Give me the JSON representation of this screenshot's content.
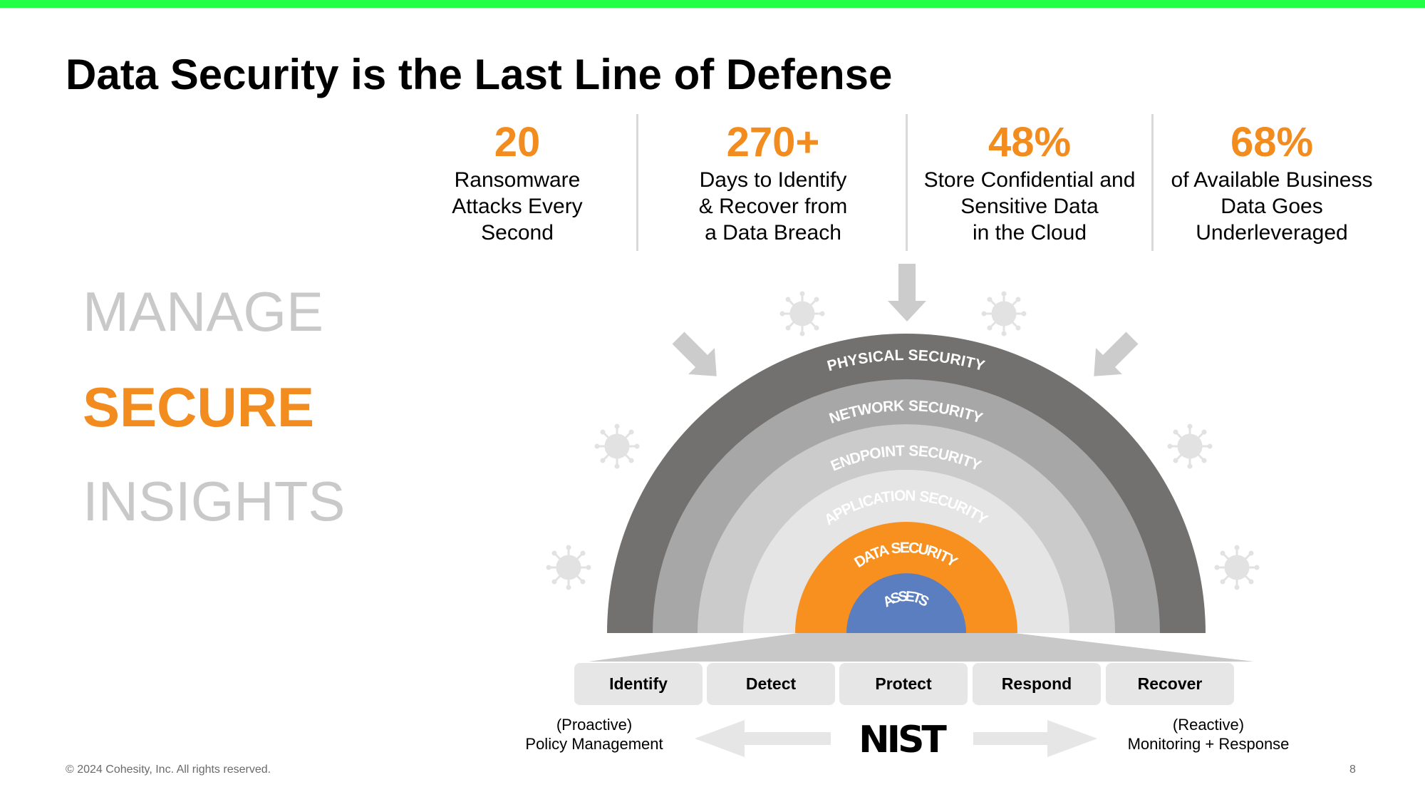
{
  "colors": {
    "accent": "#f28c1e",
    "top_bar": "#22ff44",
    "physical": "#737170",
    "network": "#a8a7a7",
    "endpoint": "#cbcbcb",
    "application": "#e5e5e5",
    "data": "#f7901e",
    "assets": "#5a7ec0",
    "muted": "#c9c9c9"
  },
  "title": "Data Security is the Last Line of Defense",
  "stats": [
    {
      "number": "20",
      "description": "Ransomware\nAttacks Every\nSecond"
    },
    {
      "number": "270+",
      "description": "Days to Identify\n& Recover from\na Data Breach"
    },
    {
      "number": "48%",
      "description": "Store Confidential and\nSensitive Data\nin the Cloud"
    },
    {
      "number": "68%",
      "description": "of Available Business\nData Goes\nUnderleveraged"
    }
  ],
  "pillars": {
    "manage": "MANAGE",
    "secure": "SECURE",
    "insights": "INSIGHTS"
  },
  "layers": {
    "physical": "PHYSICAL SECURITY",
    "network": "NETWORK SECURITY",
    "endpoint": "ENDPOINT SECURITY",
    "application": "APPLICATION SECURITY",
    "data": "DATA SECURITY",
    "assets": "ASSETS"
  },
  "nist_steps": [
    "Identify",
    "Detect",
    "Protect",
    "Respond",
    "Recover"
  ],
  "phases": {
    "proactive": "(Proactive)\nPolicy Management",
    "reactive": "(Reactive)\nMonitoring + Response"
  },
  "nist_logo": "NIST",
  "icons": {
    "threat": "virus-icon",
    "attack": "arrow-down-icon"
  },
  "footer": {
    "copyright": "© 2024 Cohesity, Inc. All rights reserved.",
    "page_number": "8"
  }
}
